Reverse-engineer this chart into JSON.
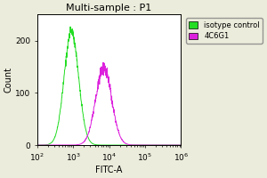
{
  "title": "Multi-sample : P1",
  "xlabel": "FITC-A",
  "ylabel": "Count",
  "xlim_log": [
    2,
    6
  ],
  "ylim": [
    0,
    250
  ],
  "yticks": [
    0,
    100,
    200
  ],
  "background_color": "#ececdc",
  "plot_bg_color": "#ffffff",
  "green_color": "#22dd22",
  "magenta_color": "#dd22dd",
  "green_peak_log": 2.95,
  "green_peak_count": 218,
  "green_sigma_log": 0.2,
  "magenta_peak_log": 3.85,
  "magenta_peak_count": 148,
  "magenta_sigma_log": 0.22,
  "legend_labels": [
    "isotype control",
    "4C6G1"
  ],
  "title_fontsize": 8,
  "axis_fontsize": 7,
  "tick_fontsize": 6.5
}
